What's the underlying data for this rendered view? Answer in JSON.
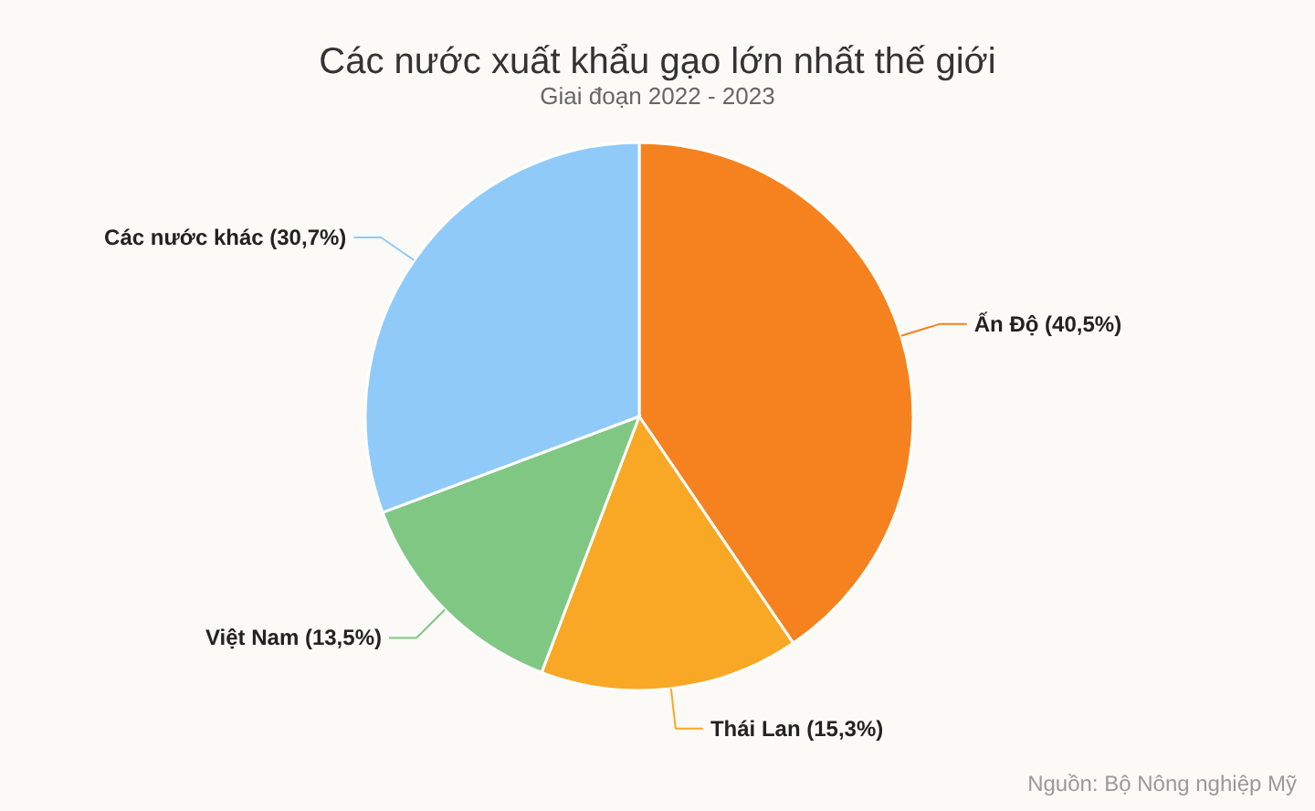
{
  "chart_data": {
    "type": "pie",
    "title": "Các nước xuất khẩu gạo lớn nhất thế giới",
    "subtitle": "Giai đoạn 2022 - 2023",
    "categories": [
      "Ấn Độ (40,5%)",
      "Thái Lan (15,3%)",
      "Việt Nam (13,5%)",
      "Các nước khác (30,7%)"
    ],
    "values": [
      40.5,
      15.3,
      13.5,
      30.7
    ],
    "colors": [
      "#f5821f",
      "#f9a825",
      "#81c784",
      "#90caf9"
    ],
    "annotations": [
      "Nguồn: Bộ Nông nghiệp Mỹ"
    ],
    "legend": false
  }
}
